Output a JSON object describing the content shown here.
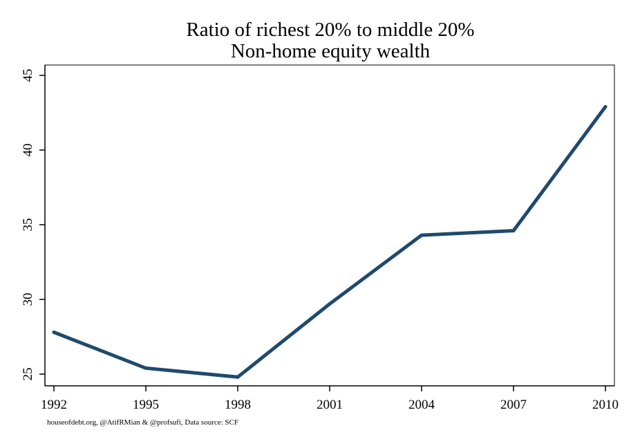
{
  "chart_data": {
    "type": "line",
    "title": "Ratio of richest 20% to middle 20%",
    "subtitle": "Non-home equity wealth",
    "xlabel": "",
    "ylabel": "",
    "x": [
      1992,
      1995,
      1998,
      2001,
      2004,
      2007,
      2010
    ],
    "series": [
      {
        "values": [
          27.8,
          25.4,
          24.8,
          29.7,
          34.3,
          34.6,
          42.9
        ]
      }
    ],
    "x_ticks": [
      "1992",
      "1995",
      "1998",
      "2001",
      "2004",
      "2007",
      "2010"
    ],
    "y_ticks": [
      "25",
      "30",
      "35",
      "40",
      "45"
    ],
    "xlim": [
      1992,
      2010
    ],
    "ylim": [
      25,
      45
    ],
    "grid": false,
    "legend": "none",
    "line_color": "#1f4a6e",
    "note": "houseofdebt.org, @AtifRMian & @profsufi, Data source: SCF"
  }
}
